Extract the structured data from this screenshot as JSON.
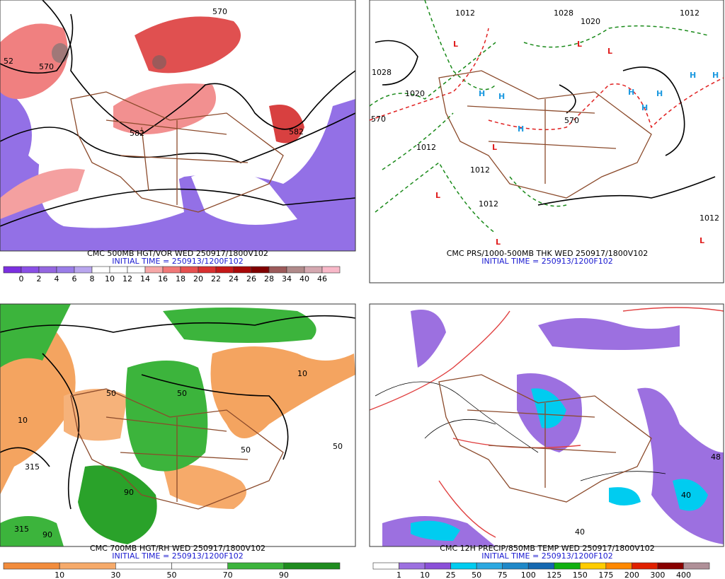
{
  "panels": [
    {
      "caption": "CMC 500MB HGT/VOR WED 250917/1800V102",
      "initial_time": "INITIAL TIME = 250913/1200F102",
      "colorbar": {
        "labels": [
          0,
          2,
          4,
          6,
          8,
          10,
          12,
          14,
          16,
          18,
          20,
          22,
          24,
          26,
          28,
          34,
          40,
          46
        ],
        "colors": [
          "#7b2fe0",
          "#8a4fe6",
          "#9466e0",
          "#9a7de8",
          "#b9a6ee",
          "#ffffff",
          "#ffffff",
          "#ffffff",
          "#f6a8a8",
          "#f07878",
          "#e65050",
          "#d83030",
          "#c41818",
          "#a80808",
          "#800000",
          "#9c5a5a",
          "#b08a8a",
          "#d4a8b0",
          "#f8b8c8"
        ]
      },
      "map_labels": [
        "52",
        "570",
        "582",
        "582",
        "570"
      ]
    },
    {
      "caption": "CMC PRS/1000-500MB THK WED 250917/1800V102",
      "initial_time": "INITIAL TIME = 250913/1200F102",
      "map_labels": [
        "1012",
        "1028",
        "1020",
        "1012",
        "1028",
        "1020",
        "570",
        "570",
        "1012",
        "1012",
        "1012",
        "1012",
        "L",
        "L",
        "L",
        "L",
        "L",
        "L",
        "L",
        "H",
        "H",
        "H",
        "H",
        "H",
        "H",
        "H",
        "H"
      ]
    },
    {
      "caption": "CMC 700MB HGT/RH WED 250917/1800V102",
      "initial_time": "INITIAL TIME = 250913/1200F102",
      "colorbar": {
        "labels": [
          10,
          30,
          50,
          70,
          90
        ],
        "colors": [
          "#f28c3c",
          "#f6aa6a",
          "#ffffff",
          "#ffffff",
          "#3cb43c",
          "#1e8c1e"
        ]
      },
      "map_labels": [
        "10",
        "315",
        "50",
        "50",
        "90",
        "50",
        "10",
        "315",
        "90",
        "50"
      ]
    },
    {
      "caption": "CMC 12H PRECIP/850MB TEMP WED 250917/1800V102",
      "initial_time": "INITIAL TIME = 250913/1200F102",
      "colorbar": {
        "labels": [
          1,
          10,
          25,
          50,
          75,
          100,
          125,
          150,
          175,
          200,
          300,
          400
        ],
        "colors": [
          "#ffffff",
          "#9c70e0",
          "#8a50d8",
          "#00ccf0",
          "#2aa8e0",
          "#1e88c8",
          "#1468b0",
          "#10b010",
          "#ffcc00",
          "#ff8800",
          "#e02000",
          "#880000",
          "#b09098"
        ]
      },
      "map_labels": [
        "48",
        "40",
        "40"
      ]
    }
  ]
}
